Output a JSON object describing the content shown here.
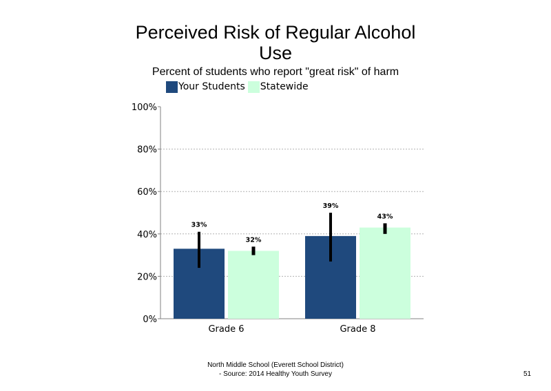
{
  "chart_data": {
    "type": "bar",
    "title_line1": "Perceived Risk of Regular Alcohol",
    "title_line2": "Use",
    "subtitle": "Percent of students who report \"great risk\" of harm",
    "categories": [
      "Grade 6",
      "Grade 8"
    ],
    "series": [
      {
        "name": "Your Students",
        "color": "#1f497d",
        "values": [
          33,
          39
        ],
        "labels": [
          "33%",
          "39%"
        ],
        "error_low": [
          24,
          27
        ],
        "error_high": [
          41,
          50
        ]
      },
      {
        "name": "Statewide",
        "color": "#ccffdd",
        "values": [
          32,
          43
        ],
        "labels": [
          "32%",
          "43%"
        ],
        "error_low": [
          30,
          40
        ],
        "error_high": [
          34,
          45
        ]
      }
    ],
    "ylim": [
      0,
      100
    ],
    "yticks": [
      0,
      20,
      40,
      60,
      80,
      100
    ],
    "ytick_labels": [
      "0%",
      "20%",
      "40%",
      "60%",
      "80%",
      "100%"
    ],
    "grid": true,
    "legend_position": "top-left",
    "xlabel": "",
    "ylabel": ""
  },
  "footer": {
    "line1": "North Middle School (Everett School District)",
    "line2": "- Source: 2014 Healthy Youth Survey"
  },
  "page_number": "51"
}
